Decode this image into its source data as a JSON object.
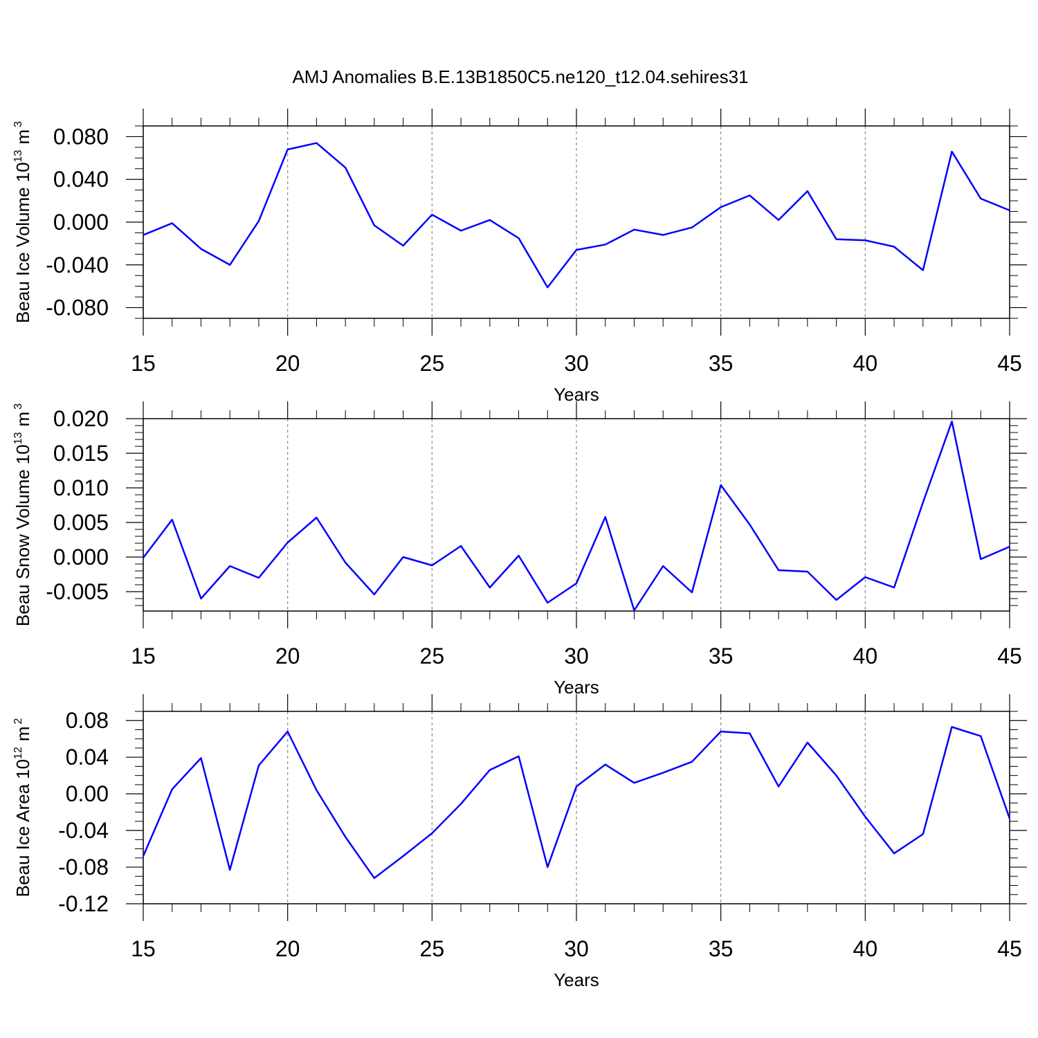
{
  "chart_data": [
    {
      "type": "line",
      "title": "AMJ Anomalies B.E.13B1850C5.ne120_t12.04.sehires31",
      "xlabel": "Years",
      "ylabel": {
        "text": "Beau Ice Volume",
        "power_base": "10",
        "power": "13",
        "unit": "m",
        "unit_power": "3"
      },
      "x": [
        15,
        16,
        17,
        18,
        19,
        20,
        21,
        22,
        23,
        24,
        25,
        26,
        27,
        28,
        29,
        30,
        31,
        32,
        33,
        34,
        35,
        36,
        37,
        38,
        39,
        40,
        41,
        42,
        43,
        44,
        45
      ],
      "series": [
        {
          "color": "#0000ff",
          "values": [
            -0.012,
            -0.001,
            -0.025,
            -0.04,
            0.001,
            0.068,
            0.074,
            0.051,
            -0.003,
            -0.022,
            0.007,
            -0.008,
            0.002,
            -0.015,
            -0.061,
            -0.026,
            -0.021,
            -0.007,
            -0.012,
            -0.005,
            0.014,
            0.025,
            0.002,
            0.029,
            -0.016,
            -0.017,
            -0.023,
            -0.045,
            0.066,
            0.022,
            0.011
          ]
        }
      ],
      "xlim": [
        15,
        45
      ],
      "xticks": [
        15,
        20,
        25,
        30,
        35,
        40,
        45
      ],
      "x_minor_per_major": 5,
      "ylim": [
        -0.09,
        0.09
      ],
      "yticks": [
        {
          "value": -0.08,
          "label": "-0.080"
        },
        {
          "value": -0.04,
          "label": "-0.040"
        },
        {
          "value": 0,
          "label": "0.000"
        },
        {
          "value": 0.04,
          "label": "0.040"
        },
        {
          "value": 0.08,
          "label": "0.080"
        }
      ],
      "y_minor_per_major": 4,
      "grid": "x"
    },
    {
      "type": "line",
      "xlabel": "Years",
      "ylabel": {
        "text": "Beau Snow Volume",
        "power_base": "10",
        "power": "13",
        "unit": "m",
        "unit_power": "3"
      },
      "x": [
        15,
        16,
        17,
        18,
        19,
        20,
        21,
        22,
        23,
        24,
        25,
        26,
        27,
        28,
        29,
        30,
        31,
        32,
        33,
        34,
        35,
        36,
        37,
        38,
        39,
        40,
        41,
        42,
        43,
        44,
        45
      ],
      "series": [
        {
          "color": "#0000ff",
          "values": [
            -0.0001,
            0.0054,
            -0.006,
            -0.0013,
            -0.003,
            0.0021,
            0.0057,
            -0.0008,
            -0.0054,
            0.0,
            -0.0012,
            0.0016,
            -0.0044,
            0.0002,
            -0.0066,
            -0.0038,
            0.0058,
            -0.0077,
            -0.0013,
            -0.0051,
            0.0104,
            0.0047,
            -0.0019,
            -0.0021,
            -0.0062,
            -0.0029,
            -0.0044,
            0.0079,
            0.0196,
            -0.0003,
            0.0015
          ]
        }
      ],
      "xlim": [
        15,
        45
      ],
      "xticks": [
        15,
        20,
        25,
        30,
        35,
        40,
        45
      ],
      "x_minor_per_major": 5,
      "ylim": [
        -0.0078,
        0.02
      ],
      "yticks": [
        -0.005,
        {
          "value": 0,
          "label": "0.000"
        },
        0.005,
        {
          "value": 0.01,
          "label": "0.010"
        },
        0.015,
        {
          "value": 0.02,
          "label": "0.020"
        }
      ],
      "y_minor_per_major": 5,
      "grid": "x"
    },
    {
      "type": "line",
      "xlabel": "Years",
      "ylabel": {
        "text": "Beau Ice Area",
        "power_base": "10",
        "power": "12",
        "unit": "m",
        "unit_power": "2"
      },
      "x": [
        15,
        16,
        17,
        18,
        19,
        20,
        21,
        22,
        23,
        24,
        25,
        26,
        27,
        28,
        29,
        30,
        31,
        32,
        33,
        34,
        35,
        36,
        37,
        38,
        39,
        40,
        41,
        42,
        43,
        44,
        45
      ],
      "series": [
        {
          "color": "#0000ff",
          "values": [
            -0.068,
            0.005,
            0.039,
            -0.083,
            0.031,
            0.068,
            0.004,
            -0.047,
            -0.092,
            -0.068,
            -0.043,
            -0.011,
            0.026,
            0.041,
            -0.08,
            0.008,
            0.032,
            0.012,
            0.023,
            0.035,
            0.068,
            0.066,
            0.008,
            0.056,
            0.02,
            -0.025,
            -0.065,
            -0.044,
            0.073,
            0.063,
            -0.027
          ]
        }
      ],
      "xlim": [
        15,
        45
      ],
      "xticks": [
        15,
        20,
        25,
        30,
        35,
        40,
        45
      ],
      "x_minor_per_major": 5,
      "ylim": [
        -0.12,
        0.09
      ],
      "yticks": [
        -0.12,
        -0.08,
        -0.04,
        {
          "value": 0,
          "label": "0.00"
        },
        0.04,
        0.08
      ],
      "y_minor_per_major": 4,
      "grid": "x"
    }
  ]
}
